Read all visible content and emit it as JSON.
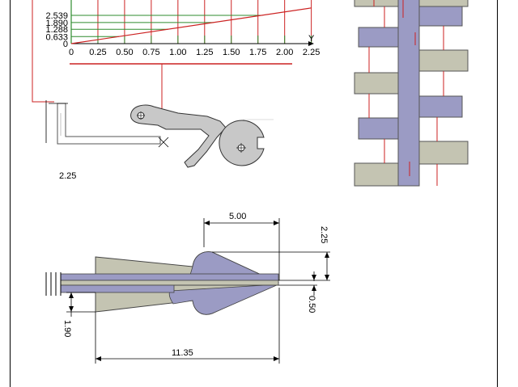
{
  "chart_data": {
    "type": "line",
    "xlabel": "Y",
    "ylabel": "",
    "x_tick_labels": [
      "0",
      "0.25",
      "0.50",
      "0.75",
      "1.00",
      "1.25",
      "1.50",
      "1.75",
      "2.00",
      "2.25"
    ],
    "y_tick_labels": [
      "0",
      "0.633",
      "1.288",
      "1.890",
      "2.539"
    ],
    "xlim": [
      0,
      2.25
    ],
    "series": [
      {
        "x": [
          0,
          2.25
        ],
        "y": [
          0,
          3.2
        ]
      }
    ],
    "grid": true
  },
  "drawing": {
    "label_mechanism_dimension": "2.25",
    "dimensions": {
      "top_length": "5.00",
      "right_height": "2.25",
      "right_small": "0.50",
      "left_height": "1.90",
      "bottom_length": "11.35"
    }
  },
  "colors": {
    "outline": "#000000",
    "construction_red": "#cc2222",
    "chart_green": "#2e8b2e",
    "khaki_fill": "#c4c4b2",
    "lavender_fill": "#9b9bc4",
    "gray_fill": "#c8c8c8"
  }
}
